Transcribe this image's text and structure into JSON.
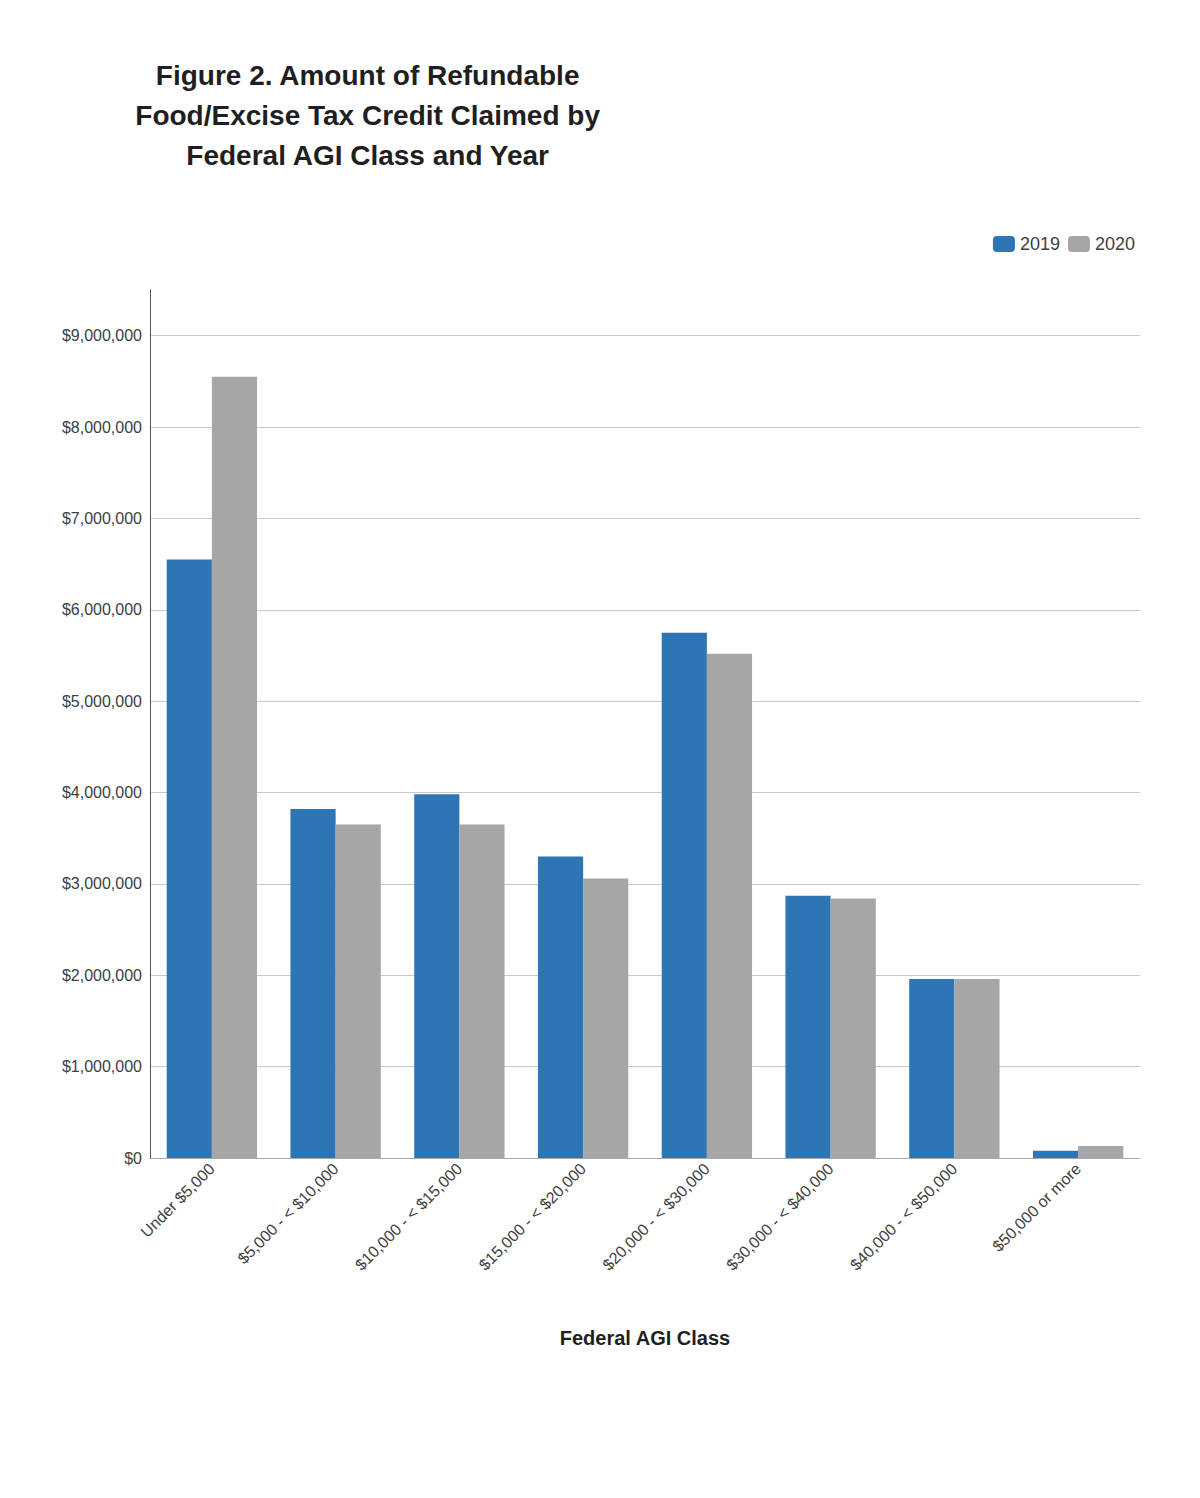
{
  "chart_data": {
    "type": "bar",
    "title": "Figure 2. Amount of Refundable\nFood/Excise Tax Credit Claimed by\nFederal AGI Class and Year",
    "xlabel": "Federal AGI Class",
    "categories": [
      "Under $5,000",
      "$5,000 - < $10,000",
      "$10,000 - < $15,000",
      "$15,000 - < $20,000",
      "$20,000 - < $30,000",
      "$30,000 - < $40,000",
      "$40,000 - < $50,000",
      "$50,000 or more"
    ],
    "series": [
      {
        "name": "2019",
        "color": "#2E75B6",
        "values": [
          6550000,
          3820000,
          3980000,
          3300000,
          5750000,
          2870000,
          1960000,
          80000
        ]
      },
      {
        "name": "2020",
        "color": "#A6A6A6",
        "values": [
          8550000,
          3650000,
          3650000,
          3060000,
          5520000,
          2840000,
          1960000,
          130000
        ]
      }
    ],
    "ylim": [
      0,
      9500000
    ],
    "yticks": [
      {
        "value": 0,
        "label": "$0"
      },
      {
        "value": 1000000,
        "label": "$1,000,000"
      },
      {
        "value": 2000000,
        "label": "$2,000,000"
      },
      {
        "value": 3000000,
        "label": "$3,000,000"
      },
      {
        "value": 4000000,
        "label": "$4,000,000"
      },
      {
        "value": 5000000,
        "label": "$5,000,000"
      },
      {
        "value": 6000000,
        "label": "$6,000,000"
      },
      {
        "value": 7000000,
        "label": "$7,000,000"
      },
      {
        "value": 8000000,
        "label": "$8,000,000"
      },
      {
        "value": 9000000,
        "label": "$9,000,000"
      }
    ],
    "grid": true,
    "legend": "upper right"
  }
}
